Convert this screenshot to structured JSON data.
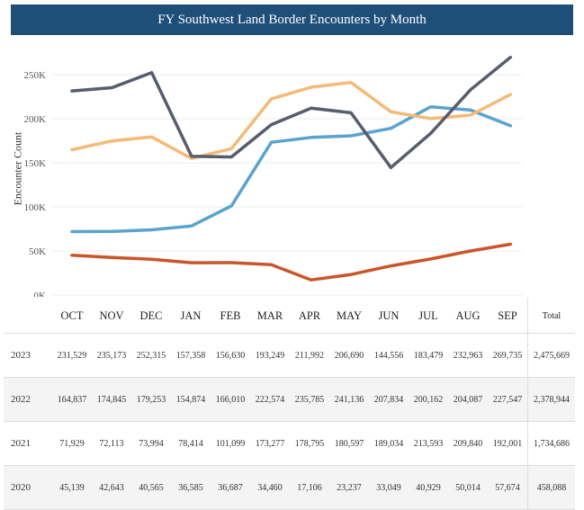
{
  "title": "FY Southwest Land Border Encounters by Month",
  "chart_data": {
    "type": "line",
    "title": "FY Southwest Land Border Encounters by Month",
    "ylabel": "Encounter Count",
    "ylim": [
      0,
      290000
    ],
    "yticks": [
      0,
      50000,
      100000,
      150000,
      200000,
      250000
    ],
    "ytick_labels": [
      "0K",
      "50K",
      "100K",
      "150K",
      "200K",
      "250K"
    ],
    "grid": true,
    "categories": [
      "OCT",
      "NOV",
      "DEC",
      "JAN",
      "FEB",
      "MAR",
      "APR",
      "MAY",
      "JUN",
      "JUL",
      "AUG",
      "SEP"
    ],
    "series": [
      {
        "year": "2023",
        "color": "#575d6c",
        "values": [
          231529,
          235173,
          252315,
          157358,
          156630,
          193249,
          211992,
          206690,
          144556,
          183479,
          232963,
          269735
        ]
      },
      {
        "year": "2022",
        "color": "#f5ba78",
        "values": [
          164837,
          174845,
          179253,
          154874,
          166010,
          222574,
          235785,
          241136,
          207834,
          200162,
          204087,
          227547
        ]
      },
      {
        "year": "2021",
        "color": "#5ba3cf",
        "values": [
          71929,
          72113,
          73994,
          78414,
          101099,
          173277,
          178795,
          180597,
          189034,
          213593,
          209840,
          192001
        ]
      },
      {
        "year": "2020",
        "color": "#c9562a",
        "values": [
          45139,
          42643,
          40565,
          36585,
          36687,
          34460,
          17106,
          23237,
          33049,
          40929,
          50014,
          57674
        ]
      }
    ]
  },
  "table": {
    "total_label": "Total",
    "rows": [
      {
        "year": "2023",
        "cells": [
          "231,529",
          "235,173",
          "252,315",
          "157,358",
          "156,630",
          "193,249",
          "211,992",
          "206,690",
          "144,556",
          "183,479",
          "232,963",
          "269,735"
        ],
        "total": "2,475,669"
      },
      {
        "year": "2022",
        "cells": [
          "164,837",
          "174,845",
          "179,253",
          "154,874",
          "166,010",
          "222,574",
          "235,785",
          "241,136",
          "207,834",
          "200,162",
          "204,087",
          "227,547"
        ],
        "total": "2,378,944"
      },
      {
        "year": "2021",
        "cells": [
          "71,929",
          "72,113",
          "73,994",
          "78,414",
          "101,099",
          "173,277",
          "178,795",
          "180,597",
          "189,034",
          "213,593",
          "209,840",
          "192,001"
        ],
        "total": "1,734,686"
      },
      {
        "year": "2020",
        "cells": [
          "45,139",
          "42,643",
          "40,565",
          "36,585",
          "36,687",
          "34,460",
          "17,106",
          "23,237",
          "33,049",
          "40,929",
          "50,014",
          "57,674"
        ],
        "total": "458,088"
      }
    ]
  }
}
